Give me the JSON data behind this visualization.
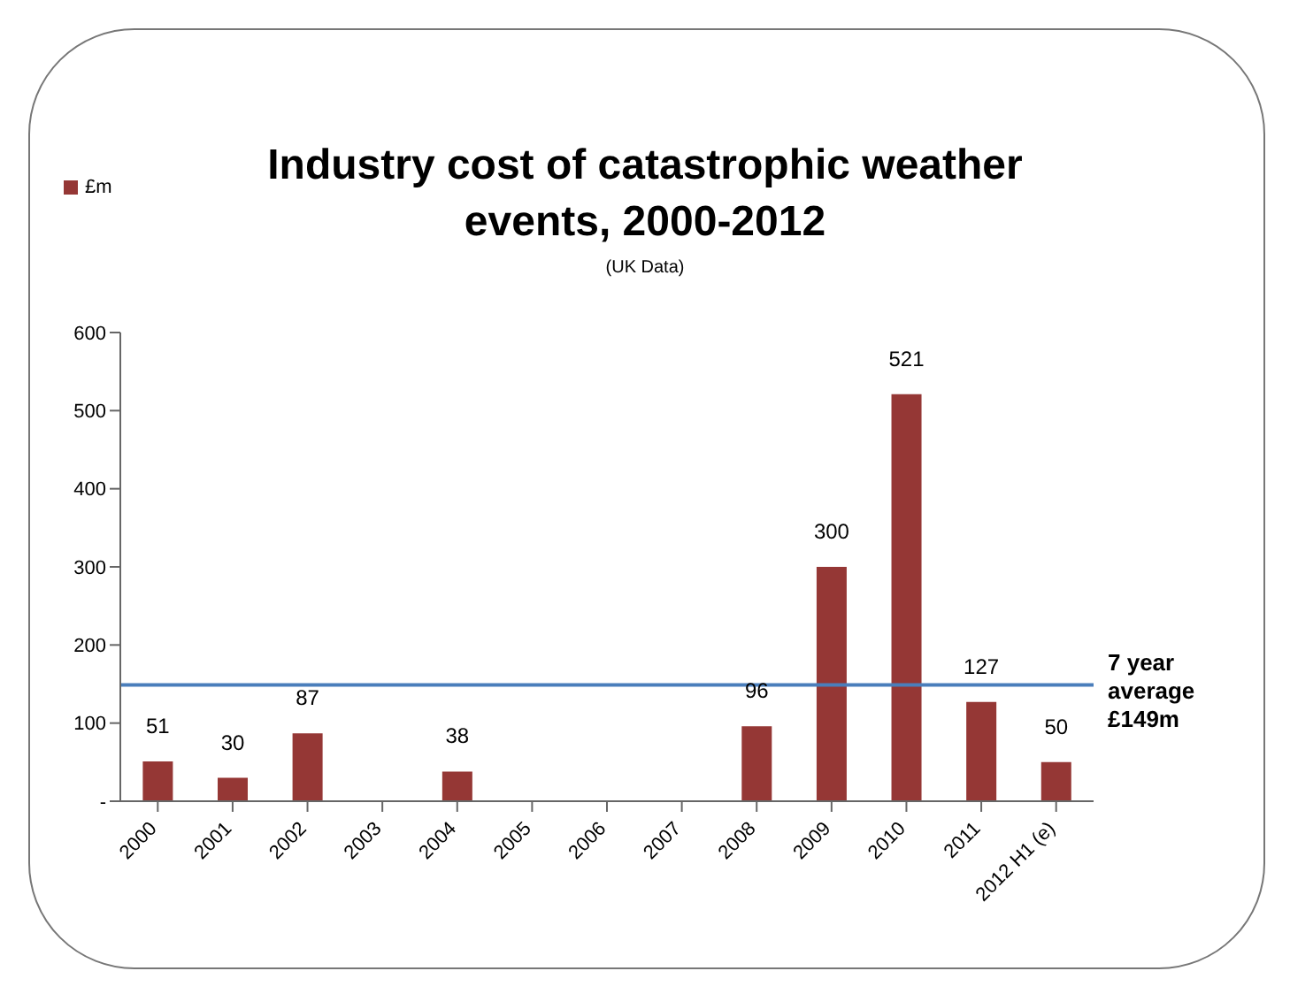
{
  "chart_data": {
    "type": "bar",
    "title": "Industry cost of catastrophic weather events, 2000-2012",
    "subtitle": "(UK Data)",
    "categories": [
      "2000",
      "2001",
      "2002",
      "2003",
      "2004",
      "2005",
      "2006",
      "2007",
      "2008",
      "2009",
      "2010",
      "2011",
      "2012 H1 (e)"
    ],
    "series": [
      {
        "name": "£m",
        "color": "#953735",
        "values": [
          51,
          30,
          87,
          0,
          38,
          0,
          0,
          0,
          96,
          300,
          521,
          127,
          50
        ]
      }
    ],
    "value_labels": [
      "51",
      "30",
      "87",
      null,
      "38",
      null,
      null,
      null,
      "96",
      "300",
      "521",
      "127",
      "50"
    ],
    "ylim": [
      0,
      600
    ],
    "yticks": [
      {
        "value": 0,
        "label": "-"
      },
      100,
      200,
      300,
      400,
      500,
      600
    ],
    "ref_lines": [
      {
        "axis": "y",
        "value": 149,
        "label": "7 year average £149m",
        "color": "#4a7ebb"
      }
    ],
    "legend": "top left",
    "grid": false
  }
}
